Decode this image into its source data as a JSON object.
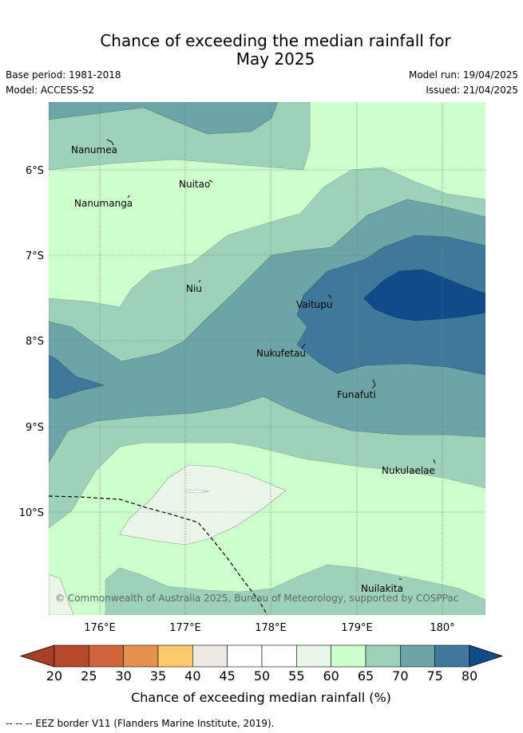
{
  "title": {
    "line1": "Chance of exceeding the median rainfall for",
    "line2": "May 2025"
  },
  "meta": {
    "base_period": "Base period: 1981-2018",
    "model": "Model: ACCESS-S2",
    "model_run": "Model run: 19/04/2025",
    "issued": "Issued: 21/04/2025"
  },
  "map": {
    "copyright": "© Commonwealth of Australia 2025, Bureau of Meteorology, supported by COSPPac",
    "lat_labels": [
      "6°S",
      "7°S",
      "8°S",
      "9°S",
      "10°S"
    ],
    "lon_labels": [
      "176°E",
      "177°E",
      "178°E",
      "179°E",
      "180°"
    ],
    "places": [
      {
        "name": "Nanumea"
      },
      {
        "name": "Nuitao"
      },
      {
        "name": "Nanumanga"
      },
      {
        "name": "Niu"
      },
      {
        "name": "Vaitupu"
      },
      {
        "name": "Nukufetau"
      },
      {
        "name": "Funafuti"
      },
      {
        "name": "Nukulaelae"
      },
      {
        "name": "Nuilakita"
      }
    ]
  },
  "colorbar": {
    "ticks": [
      "20",
      "25",
      "30",
      "35",
      "40",
      "45",
      "50",
      "55",
      "60",
      "65",
      "70",
      "75",
      "80"
    ],
    "colors": [
      "#b5492a",
      "#d0643a",
      "#e3944a",
      "#fdca6b",
      "#ede9e5",
      "#ffffff",
      "#ffffff",
      "#e9f6e8",
      "#ccffcc",
      "#9ed1b9",
      "#6ca4a8",
      "#3f789b",
      "#124b89"
    ],
    "under_color": "#a73e28",
    "over_color": "#124b89",
    "label": "Chance of exceeding median rainfall (%)"
  },
  "legend_note": "-- -- -- EEZ border V11 (Flanders Marine Institute, 2019)."
}
